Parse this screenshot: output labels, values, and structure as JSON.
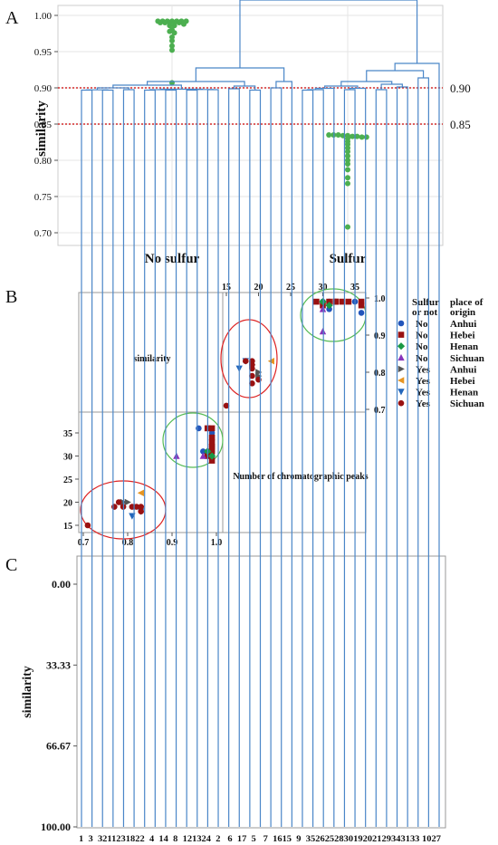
{
  "panel_labels": [
    "A",
    "B",
    "C"
  ],
  "chart_data": [
    {
      "type": "scatter",
      "panel": "A",
      "ylabel": "similarity",
      "ylim": [
        0.69,
        1.01
      ],
      "yticks": [
        "1.00",
        "0.95",
        "0.90",
        "0.85",
        "0.80",
        "0.75",
        "0.70"
      ],
      "categories": [
        "No sulfur",
        "Sulfur"
      ],
      "grid": true,
      "point_color": "#4caf50",
      "ref_line_color": "#cc0000",
      "reference_lines": [
        {
          "value": 0.9,
          "label": "0.90"
        },
        {
          "value": 0.85,
          "label": "0.85"
        }
      ],
      "series": [
        {
          "category": "No sulfur",
          "values": [
            0.992,
            0.992,
            0.992,
            0.992,
            0.992,
            0.992,
            0.992,
            0.99,
            0.99,
            0.99,
            0.99,
            0.99,
            0.988,
            0.986,
            0.986,
            0.98,
            0.978,
            0.976,
            0.97,
            0.965,
            0.958,
            0.952,
            0.907
          ]
        },
        {
          "category": "Sulfur",
          "values": [
            0.835,
            0.835,
            0.835,
            0.834,
            0.834,
            0.833,
            0.833,
            0.832,
            0.832,
            0.83,
            0.826,
            0.822,
            0.817,
            0.812,
            0.806,
            0.8,
            0.795,
            0.787,
            0.776,
            0.768,
            0.708
          ]
        }
      ]
    },
    {
      "type": "scatter",
      "panel": "B",
      "annotations": [
        "similarity",
        "Number of chromatographic peaks"
      ],
      "x_ticks": [
        "0.7",
        "0.8",
        "0.9",
        "1.0"
      ],
      "y_ticks_left": [
        "15",
        "20",
        "25",
        "30",
        "35"
      ],
      "top_ticks": [
        "15",
        "20",
        "25",
        "30",
        "35"
      ],
      "right_ticks": [
        "0.7",
        "0.8",
        "0.9",
        "1.0"
      ],
      "legend": {
        "headers": [
          "Sulfur or not",
          "place of origin"
        ],
        "entries": [
          {
            "sulfur": "No",
            "origin": "Anhui",
            "marker": "circle",
            "color": "#2255bb"
          },
          {
            "sulfur": "No",
            "origin": "Hebei",
            "marker": "square",
            "color": "#991111"
          },
          {
            "sulfur": "No",
            "origin": "Henan",
            "marker": "diamond",
            "color": "#1a9944"
          },
          {
            "sulfur": "No",
            "origin": "Sichuan",
            "marker": "triangle",
            "color": "#8833bb"
          },
          {
            "sulfur": "Yes",
            "origin": "Anhui",
            "marker": "tri-right",
            "color": "#555555"
          },
          {
            "sulfur": "Yes",
            "origin": "Hebei",
            "marker": "tri-left",
            "color": "#e69522"
          },
          {
            "sulfur": "Yes",
            "origin": "Henan",
            "marker": "tri-down",
            "color": "#2266bb"
          },
          {
            "sulfur": "Yes",
            "origin": "Sichuan",
            "marker": "circle",
            "color": "#991111"
          }
        ]
      },
      "ellipse_colors": {
        "no_sulfur": "#55bb55",
        "sulfur": "#dd2222"
      },
      "points": [
        {
          "g": 0,
          "sim": 0.99,
          "peaks": 30
        },
        {
          "g": 0,
          "sim": 0.99,
          "peaks": 31
        },
        {
          "g": 0,
          "sim": 0.97,
          "peaks": 31
        },
        {
          "g": 0,
          "sim": 0.96,
          "peaks": 36
        },
        {
          "g": 0,
          "sim": 0.99,
          "peaks": 32
        },
        {
          "g": 0,
          "sim": 0.99,
          "peaks": 35
        },
        {
          "g": 1,
          "sim": 0.99,
          "peaks": 31
        },
        {
          "g": 1,
          "sim": 0.98,
          "peaks": 30
        },
        {
          "g": 1,
          "sim": 0.99,
          "peaks": 32
        },
        {
          "g": 1,
          "sim": 0.99,
          "peaks": 34
        },
        {
          "g": 1,
          "sim": 0.99,
          "peaks": 36
        },
        {
          "g": 1,
          "sim": 0.98,
          "peaks": 36
        },
        {
          "g": 1,
          "sim": 0.99,
          "peaks": 33
        },
        {
          "g": 1,
          "sim": 0.99,
          "peaks": 32
        },
        {
          "g": 1,
          "sim": 0.99,
          "peaks": 29
        },
        {
          "g": 2,
          "sim": 0.99,
          "peaks": 30
        },
        {
          "g": 2,
          "sim": 0.98,
          "peaks": 31
        },
        {
          "g": 3,
          "sim": 0.91,
          "peaks": 30
        },
        {
          "g": 3,
          "sim": 0.97,
          "peaks": 30
        },
        {
          "g": 4,
          "sim": 0.8,
          "peaks": 20
        },
        {
          "g": 4,
          "sim": 0.79,
          "peaks": 20
        },
        {
          "g": 4,
          "sim": 0.82,
          "peaks": 19
        },
        {
          "g": 5,
          "sim": 0.83,
          "peaks": 22
        },
        {
          "g": 6,
          "sim": 0.81,
          "peaks": 17
        },
        {
          "g": 6,
          "sim": 0.83,
          "peaks": 18
        },
        {
          "g": 7,
          "sim": 0.71,
          "peaks": 15
        },
        {
          "g": 7,
          "sim": 0.77,
          "peaks": 19
        },
        {
          "g": 7,
          "sim": 0.79,
          "peaks": 19
        },
        {
          "g": 7,
          "sim": 0.81,
          "peaks": 19
        },
        {
          "g": 7,
          "sim": 0.83,
          "peaks": 19
        },
        {
          "g": 7,
          "sim": 0.83,
          "peaks": 18
        },
        {
          "g": 7,
          "sim": 0.78,
          "peaks": 20
        },
        {
          "g": 7,
          "sim": 0.82,
          "peaks": 19
        }
      ]
    },
    {
      "type": "dendrogram",
      "panel": "C",
      "ylabel": "similarity",
      "yticks": [
        "0.00",
        "33.33",
        "66.67",
        "100.00"
      ],
      "ylim": [
        100,
        0
      ],
      "line_color": "#4a86c8",
      "leaves": [
        "1",
        "3",
        "32",
        "11",
        "23",
        "18",
        "22",
        "4",
        "14",
        "8",
        "12",
        "13",
        "24",
        "2",
        "6",
        "17",
        "5",
        "7",
        "16",
        "15",
        "9",
        "35",
        "26",
        "25",
        "28",
        "30",
        "19",
        "20",
        "21",
        "29",
        "34",
        "31",
        "33",
        "10",
        "27"
      ],
      "leaf_label_text": "1  3  3211231822  4  14  8  121324  2   6  17  5   7  1615  9  352625283019202129343133 1027"
    }
  ]
}
